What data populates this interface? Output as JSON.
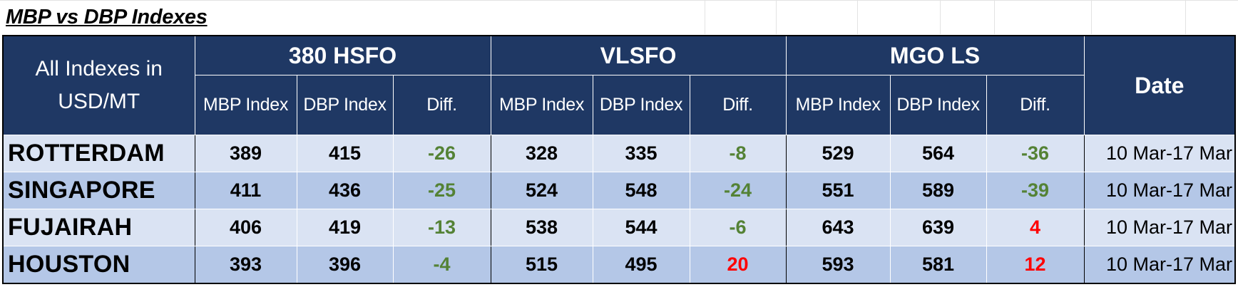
{
  "title": "MBP vs DBP Indexes",
  "corner_label": "All Indexes in USD/MT",
  "groups": [
    "380 HSFO",
    "VLSFO",
    "MGO LS"
  ],
  "subheaders": [
    "MBP Index",
    "DBP Index",
    "Diff."
  ],
  "date_header": "Date",
  "colors": {
    "header_bg": "#1f3864",
    "row_light": "#dae3f3",
    "row_dark": "#b4c7e7",
    "negative_diff": "#548235",
    "positive_diff": "#ff0000"
  },
  "rows": [
    {
      "port": "ROTTERDAM",
      "hsfo": {
        "mbp": "389",
        "dbp": "415",
        "diff": "-26"
      },
      "vlsfo": {
        "mbp": "328",
        "dbp": "335",
        "diff": "-8"
      },
      "mgo": {
        "mbp": "529",
        "dbp": "564",
        "diff": "-36"
      },
      "date": "10 Mar-17 Mar"
    },
    {
      "port": "SINGAPORE",
      "hsfo": {
        "mbp": "411",
        "dbp": "436",
        "diff": "-25"
      },
      "vlsfo": {
        "mbp": "524",
        "dbp": "548",
        "diff": "-24"
      },
      "mgo": {
        "mbp": "551",
        "dbp": "589",
        "diff": "-39"
      },
      "date": "10 Mar-17 Mar"
    },
    {
      "port": "FUJAIRAH",
      "hsfo": {
        "mbp": "406",
        "dbp": "419",
        "diff": "-13"
      },
      "vlsfo": {
        "mbp": "538",
        "dbp": "544",
        "diff": "-6"
      },
      "mgo": {
        "mbp": "643",
        "dbp": "639",
        "diff": "4"
      },
      "date": "10 Mar-17 Mar"
    },
    {
      "port": "HOUSTON",
      "hsfo": {
        "mbp": "393",
        "dbp": "396",
        "diff": "-4"
      },
      "vlsfo": {
        "mbp": "515",
        "dbp": "495",
        "diff": "20"
      },
      "mgo": {
        "mbp": "593",
        "dbp": "581",
        "diff": "12"
      },
      "date": "10 Mar-17 Mar"
    }
  ]
}
